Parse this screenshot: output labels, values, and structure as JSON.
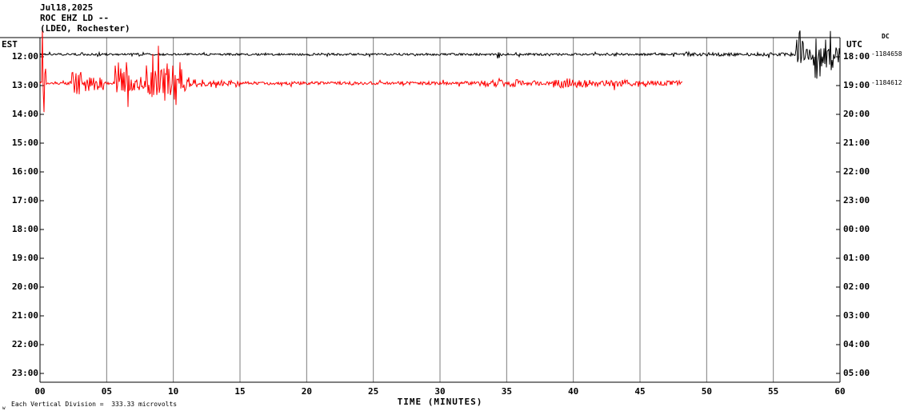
{
  "header": {
    "date": "Jul18,2025",
    "station": "ROC EHZ LD --",
    "network": "(LDEO, Rochester)"
  },
  "axes": {
    "left_label": "EST",
    "right_label": "UTC",
    "dc_label": "DC",
    "left_ticks": [
      "12:00",
      "13:00",
      "14:00",
      "15:00",
      "16:00",
      "17:00",
      "18:00",
      "19:00",
      "20:00",
      "21:00",
      "22:00",
      "23:00"
    ],
    "right_ticks": [
      "18:00",
      "19:00",
      "20:00",
      "21:00",
      "22:00",
      "23:00",
      "00:00",
      "01:00",
      "02:00",
      "03:00",
      "04:00",
      "05:00"
    ],
    "x_ticks": [
      "00",
      "05",
      "10",
      "15",
      "20",
      "25",
      "30",
      "35",
      "40",
      "45",
      "50",
      "55",
      "60"
    ],
    "xlabel": "TIME (MINUTES)",
    "right_annotations": [
      {
        "row": 0,
        "text": "-1184658"
      },
      {
        "row": 1,
        "text": "-1184612"
      }
    ]
  },
  "footer": {
    "marker": "w",
    "note": "Each Vertical Division =  333.33 microvolts"
  },
  "chart_data": {
    "type": "line",
    "title": "ROC EHZ LD (LDEO, Rochester) helicorder, Jul18,2025",
    "xlabel": "TIME (MINUTES)",
    "xlim": [
      0,
      60
    ],
    "x_tick_labels": [
      "00",
      "05",
      "10",
      "15",
      "20",
      "25",
      "30",
      "35",
      "40",
      "45",
      "50",
      "55",
      "60"
    ],
    "rows_est": [
      "12:00",
      "13:00",
      "14:00",
      "15:00",
      "16:00",
      "17:00",
      "18:00",
      "19:00",
      "20:00",
      "21:00",
      "22:00",
      "23:00"
    ],
    "rows_utc": [
      "18:00",
      "19:00",
      "20:00",
      "21:00",
      "22:00",
      "23:00",
      "00:00",
      "01:00",
      "02:00",
      "03:00",
      "04:00",
      "05:00"
    ],
    "grid": true,
    "scale_note": "Each Vertical Division = 333.33 microvolts",
    "dc_offsets": {
      "18:00": -1184658,
      "19:00": -1184612
    },
    "traces": [
      {
        "name": "trace-utc-1800",
        "est": "12:00",
        "utc": "18:00",
        "row_index": 0,
        "color": "#000000",
        "start_min": 0,
        "end_min": 60,
        "base_amp": 1.3,
        "events": [
          {
            "from": 4.3,
            "to": 4.6,
            "amp": 3
          },
          {
            "from": 7.3,
            "to": 7.5,
            "amp": 2.5
          },
          {
            "from": 20.0,
            "to": 20.3,
            "amp": 2.5
          },
          {
            "from": 34.3,
            "to": 34.7,
            "amp": 5
          },
          {
            "from": 43.0,
            "to": 43.3,
            "amp": 2.5
          },
          {
            "from": 47.5,
            "to": 56.6,
            "amp": 2.1
          },
          {
            "from": 56.7,
            "to": 57.3,
            "amp": 30
          },
          {
            "from": 57.3,
            "to": 58.0,
            "amp": 8
          },
          {
            "from": 58.0,
            "to": 58.4,
            "amp": 35
          },
          {
            "from": 58.4,
            "to": 58.9,
            "amp": 15
          },
          {
            "from": 58.9,
            "to": 59.5,
            "amp": 30
          },
          {
            "from": 59.5,
            "to": 60.0,
            "amp": 10
          }
        ]
      },
      {
        "name": "trace-utc-1900",
        "est": "13:00",
        "utc": "19:00",
        "row_index": 1,
        "color": "#ff0000",
        "start_min": 0,
        "end_min": 48.2,
        "base_amp": 2.0,
        "events": [
          {
            "from": 0.15,
            "to": 0.45,
            "amp": 35
          },
          {
            "from": 2.4,
            "to": 3.4,
            "amp": 14
          },
          {
            "from": 3.4,
            "to": 4.8,
            "amp": 10
          },
          {
            "from": 5.6,
            "to": 6.7,
            "amp": 32
          },
          {
            "from": 6.7,
            "to": 7.9,
            "amp": 9
          },
          {
            "from": 7.9,
            "to": 9.3,
            "amp": 24
          },
          {
            "from": 9.3,
            "to": 10.7,
            "amp": 30
          },
          {
            "from": 10.7,
            "to": 11.3,
            "amp": 10
          },
          {
            "from": 11.3,
            "to": 13.0,
            "amp": 5
          },
          {
            "from": 13.0,
            "to": 15.0,
            "amp": 3.5
          },
          {
            "from": 33.0,
            "to": 36.0,
            "amp": 4.5
          },
          {
            "from": 36.0,
            "to": 38.5,
            "amp": 3
          },
          {
            "from": 38.5,
            "to": 41.2,
            "amp": 6
          },
          {
            "from": 41.2,
            "to": 44.5,
            "amp": 4
          },
          {
            "from": 44.5,
            "to": 48.2,
            "amp": 3
          }
        ]
      }
    ]
  }
}
